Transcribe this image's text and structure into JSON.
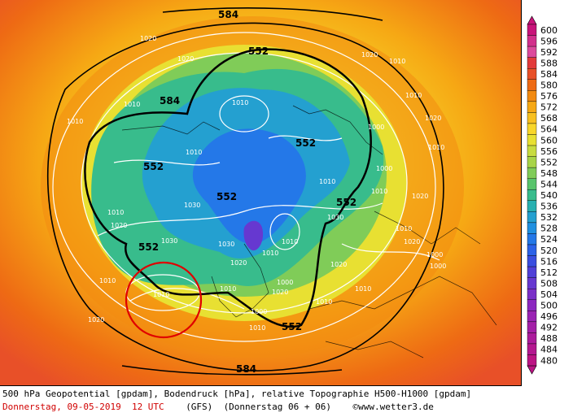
{
  "legend": {
    "values": [
      "600",
      "596",
      "592",
      "588",
      "584",
      "580",
      "576",
      "572",
      "568",
      "564",
      "560",
      "556",
      "552",
      "548",
      "544",
      "540",
      "536",
      "532",
      "528",
      "524",
      "520",
      "516",
      "512",
      "508",
      "504",
      "500",
      "496",
      "492",
      "488",
      "484",
      "480"
    ],
    "colors": [
      "#c8147a",
      "#d2308c",
      "#dc4a9c",
      "#e23a3a",
      "#e85028",
      "#ee6a14",
      "#f28a10",
      "#f6a814",
      "#f8c020",
      "#f8d62a",
      "#e8e032",
      "#c8dc40",
      "#a8d448",
      "#80cc58",
      "#58c46c",
      "#38bc8c",
      "#28b0b0",
      "#24a0d0",
      "#2090e0",
      "#2478e8",
      "#2c62e8",
      "#3a4ee0",
      "#5040d8",
      "#6638d0",
      "#7a30c8",
      "#8c28c0",
      "#9a24b4",
      "#a420a8",
      "#ac1c9c",
      "#b41890",
      "#bc1484"
    ]
  },
  "map": {
    "contour_labels": [
      "552",
      "552",
      "552",
      "552",
      "552",
      "552",
      "552",
      "584",
      "584",
      "584"
    ],
    "isobar_labels": [
      "1020",
      "1020",
      "1010",
      "1010",
      "1010",
      "1010",
      "1010",
      "1010",
      "1000",
      "1020",
      "1030",
      "1030",
      "1030",
      "1010",
      "1020",
      "1010",
      "1000",
      "1010",
      "1020",
      "1030",
      "1010",
      "1010",
      "1010",
      "1000",
      "1010",
      "1020",
      "1010",
      "1020",
      "1010",
      "1020",
      "1020",
      "1010",
      "1000",
      "1010",
      "1020",
      "1010",
      "1000",
      "1010",
      "1000",
      "1020"
    ],
    "highlight_circle_color": "#e00000"
  },
  "footer": {
    "line1": "500 hPa Geopotential [gpdam], Bodendruck [hPa], relative Topographie H500-H1000 [gpdam]",
    "date_text": "Donnerstag, 09-05-2019  12 UTC",
    "model_text": "(GFS)",
    "run_text": "(Donnerstag 06 + 06)",
    "copyright_text": "©www.wetter3.de"
  }
}
